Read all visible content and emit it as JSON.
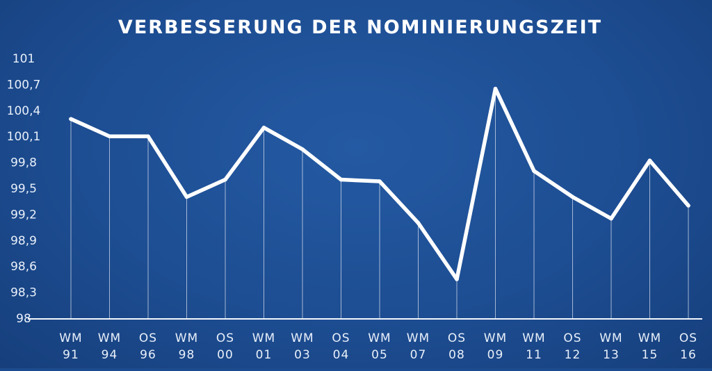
{
  "chart_data": {
    "type": "line",
    "title": "VERBESSERUNG DER NOMINIERUNGSZEIT",
    "xlabel": "",
    "ylabel": "",
    "categories": [
      [
        "WM",
        "91"
      ],
      [
        "WM",
        "94"
      ],
      [
        "OS",
        "96"
      ],
      [
        "WM",
        "98"
      ],
      [
        "OS",
        "00"
      ],
      [
        "WM",
        "01"
      ],
      [
        "WM",
        "03"
      ],
      [
        "OS",
        "04"
      ],
      [
        "WM",
        "05"
      ],
      [
        "WM",
        "07"
      ],
      [
        "OS",
        "08"
      ],
      [
        "WM",
        "09"
      ],
      [
        "WM",
        "11"
      ],
      [
        "OS",
        "12"
      ],
      [
        "WM",
        "13"
      ],
      [
        "WM",
        "15"
      ],
      [
        "OS",
        "16"
      ]
    ],
    "values": [
      100.3,
      100.1,
      100.1,
      99.4,
      99.6,
      100.2,
      99.95,
      99.6,
      99.58,
      99.1,
      98.45,
      100.65,
      99.7,
      99.4,
      99.15,
      99.82,
      99.3
    ],
    "ylim": [
      98,
      101
    ],
    "yticks": [
      "101",
      "100,7",
      "100,4",
      "100,1",
      "99,8",
      "99,5",
      "99,2",
      "98,9",
      "98,6",
      "98,3",
      "98"
    ],
    "ytick_values": [
      101,
      100.7,
      100.4,
      100.1,
      99.8,
      99.5,
      99.2,
      98.9,
      98.6,
      98.3,
      98
    ],
    "grid": false,
    "drop_lines": true,
    "colors": {
      "line": "#ffffff",
      "background": "#1d4d92",
      "text": "#e9f0fa"
    }
  }
}
